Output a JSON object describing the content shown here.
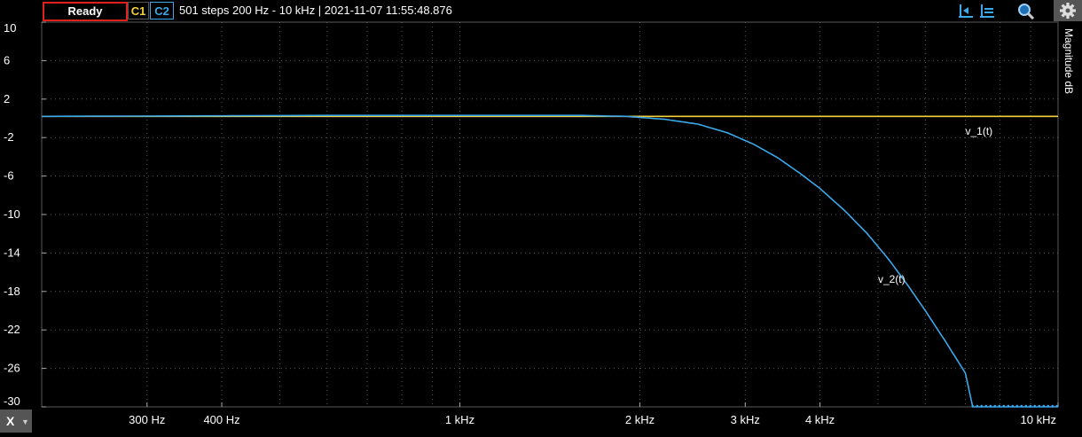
{
  "toolbar": {
    "ready_label": "Ready",
    "c1_label": "C1",
    "c2_label": "C2",
    "status_text": "501 steps  200 Hz - 10 kHz | 2021-11-07 11:55:48.876",
    "icons": [
      "cursor-left-icon",
      "cursor-right-icon",
      "zoom-icon",
      "gear-icon"
    ]
  },
  "x_menu": {
    "label": "X"
  },
  "colors": {
    "c1": "#f2d03a",
    "c2": "#3aa8ea",
    "ready_border": "#e0201c",
    "grid": "#5a5a5a"
  },
  "chart_data": {
    "type": "line",
    "xscale": "log",
    "xlim": [
      200,
      10000
    ],
    "ylim": [
      -30,
      10
    ],
    "ylabel": "Magnitude  dB",
    "grid": true,
    "y_ticks": [
      10,
      6,
      2,
      -2,
      -6,
      -10,
      -14,
      -18,
      -22,
      -26,
      -30
    ],
    "x_ticks": [
      {
        "value": 300,
        "label": "300 Hz"
      },
      {
        "value": 400,
        "label": "400 Hz"
      },
      {
        "value": 1000,
        "label": "1 kHz"
      },
      {
        "value": 2000,
        "label": "2 kHz"
      },
      {
        "value": 3000,
        "label": "3 kHz"
      },
      {
        "value": 4000,
        "label": "4 kHz"
      },
      {
        "value": 10000,
        "label": "10 kHz"
      }
    ],
    "series": [
      {
        "name": "v_1(t)",
        "color": "#f2d03a",
        "x": [
          200,
          10000
        ],
        "y": [
          0.2,
          0.2
        ],
        "label_at": [
          7000,
          -1.7
        ]
      },
      {
        "name": "v_2(t)",
        "color": "#3aa8ea",
        "x": [
          200,
          600,
          1000,
          1600,
          1900,
          2200,
          2500,
          2800,
          3100,
          3400,
          3700,
          4000,
          4400,
          4800,
          5200,
          5600,
          6000,
          6500,
          7000,
          7200,
          10000
        ],
        "y": [
          0.2,
          0.3,
          0.3,
          0.3,
          0.2,
          -0.1,
          -0.6,
          -1.5,
          -2.7,
          -4.1,
          -5.7,
          -7.3,
          -9.6,
          -12.0,
          -14.6,
          -17.3,
          -20.0,
          -23.3,
          -26.5,
          -30,
          -30
        ],
        "label_at": [
          5000,
          -17.1
        ]
      }
    ]
  }
}
